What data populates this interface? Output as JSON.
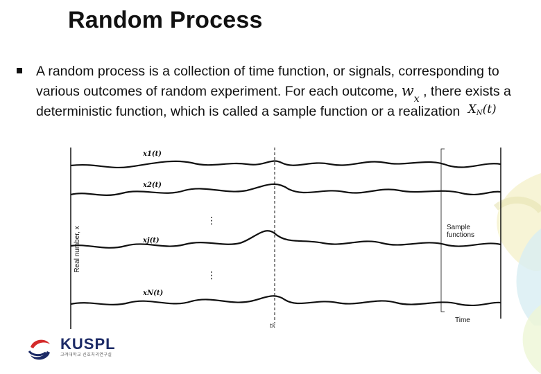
{
  "slide": {
    "title": "Random Process",
    "bullet_text_1": "A random process is a collection of time function, or signals, corresponding to various outcomes of random experiment. For each outcome,",
    "outcome_symbol": "w",
    "outcome_subscript": "x",
    "bullet_text_2": ", there exists a deterministic function, which is called a sample function or a realization",
    "realization_symbol": "X",
    "realization_subscript": "N",
    "realization_arg": "(t)"
  },
  "figure": {
    "y_axis_label": "Real number, x",
    "time_label": "Time",
    "t_k_label": "tk",
    "sample_functions_label_1": "Sample",
    "sample_functions_label_2": "functions",
    "signals": [
      {
        "label": "x1(t)"
      },
      {
        "label": "x2(t)"
      },
      {
        "label": "xj(t)"
      },
      {
        "label": "xN(t)"
      }
    ],
    "ellipsis": "⋮"
  },
  "logo": {
    "name": "KUSPL",
    "subtext": "고려대학교 신호처리연구실"
  },
  "colors": {
    "text": "#111111",
    "logo_blue": "#1c2a66",
    "logo_red": "#d42a2a"
  }
}
